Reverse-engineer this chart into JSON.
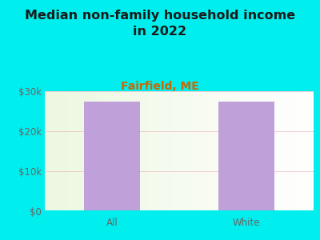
{
  "title": "Median non-family household income\nin 2022",
  "subtitle": "Fairfield, ME",
  "categories": [
    "All",
    "White"
  ],
  "values": [
    27500,
    27500
  ],
  "bar_color": "#c0a0d8",
  "background_color": "#00EEEE",
  "grid_color": "#e8b0bc",
  "title_color": "#1a1a1a",
  "subtitle_color": "#cc6600",
  "tick_label_color": "#666666",
  "ylim": [
    0,
    30000
  ],
  "yticks": [
    0,
    10000,
    20000,
    30000
  ],
  "ytick_labels": [
    "$0",
    "$10k",
    "$20k",
    "$30k"
  ],
  "title_fontsize": 11.5,
  "subtitle_fontsize": 10,
  "tick_fontsize": 8.5,
  "bar_width": 0.42,
  "xlim": [
    -0.5,
    1.5
  ]
}
